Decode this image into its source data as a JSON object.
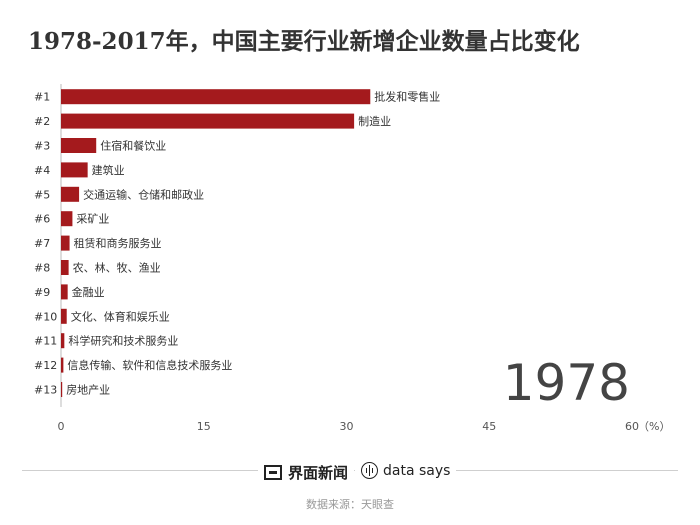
{
  "title": "1978-2017年，中国主要行业新增企业数量占比变化",
  "chart_data": {
    "type": "bar",
    "orientation": "horizontal",
    "year_label": "1978",
    "ranks": [
      "#1",
      "#2",
      "#3",
      "#4",
      "#5",
      "#6",
      "#7",
      "#8",
      "#9",
      "#10",
      "#11",
      "#12",
      "#13"
    ],
    "categories": [
      "批发和零售业",
      "制造业",
      "住宿和餐饮业",
      "建筑业",
      "交通运输、仓储和邮政业",
      "采矿业",
      "租赁和商务服务业",
      "农、林、牧、渔业",
      "金融业",
      "文化、体育和娱乐业",
      "科学研究和技术服务业",
      "信息传输、软件和信息技术服务业",
      "房地产业"
    ],
    "values": [
      32.5,
      30.8,
      3.7,
      2.8,
      1.9,
      1.2,
      0.9,
      0.8,
      0.7,
      0.6,
      0.35,
      0.25,
      0.1
    ],
    "xlim": [
      0,
      60
    ],
    "xticks": [
      "0",
      "15",
      "30",
      "45",
      "60"
    ],
    "x_unit": "（%）",
    "bar_color": "#a41a1d",
    "grid": false
  },
  "footer": {
    "brand1": "界面新闻",
    "brand2": "data says",
    "source": "数据来源：天眼查"
  }
}
